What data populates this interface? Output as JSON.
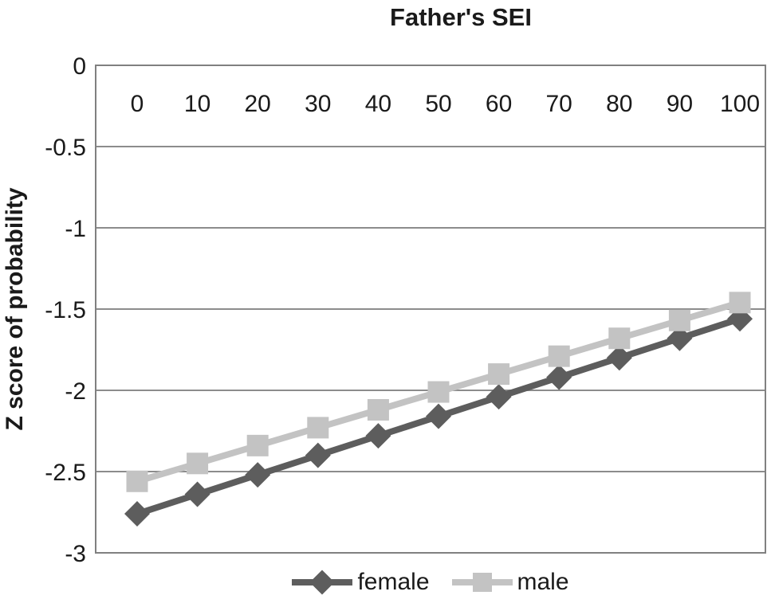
{
  "chart_data": {
    "type": "line",
    "title": "Father's SEI",
    "xlabel": "Father's SEI",
    "ylabel": "Z score of probability",
    "categories": [
      0,
      10,
      20,
      30,
      40,
      50,
      60,
      70,
      80,
      90,
      100
    ],
    "series": [
      {
        "name": "female",
        "marker": "diamond",
        "color": "#5d5d5d",
        "values": [
          -2.76,
          -2.64,
          -2.52,
          -2.4,
          -2.28,
          -2.16,
          -2.04,
          -1.92,
          -1.8,
          -1.68,
          -1.56
        ]
      },
      {
        "name": "male",
        "marker": "square",
        "color": "#c3c3c3",
        "values": [
          -2.56,
          -2.45,
          -2.34,
          -2.23,
          -2.12,
          -2.01,
          -1.9,
          -1.79,
          -1.68,
          -1.57,
          -1.46
        ]
      }
    ],
    "ylim": [
      -3,
      0
    ],
    "y_tick_step": 0.5,
    "y_tick_labels": [
      "0",
      "-0.5",
      "-1",
      "-1.5",
      "-2",
      "-2.5",
      "-3"
    ],
    "x_tick_labels": [
      "0",
      "10",
      "20",
      "30",
      "40",
      "50",
      "60",
      "70",
      "80",
      "90",
      "100"
    ],
    "grid": "horizontal",
    "legend_position": "bottom",
    "legend_entries": [
      "female",
      "male"
    ]
  },
  "colors": {
    "grid": "#8c8c8c",
    "plot_border": "#808080",
    "tick_text": "#1a1a1a",
    "background": "#ffffff"
  }
}
